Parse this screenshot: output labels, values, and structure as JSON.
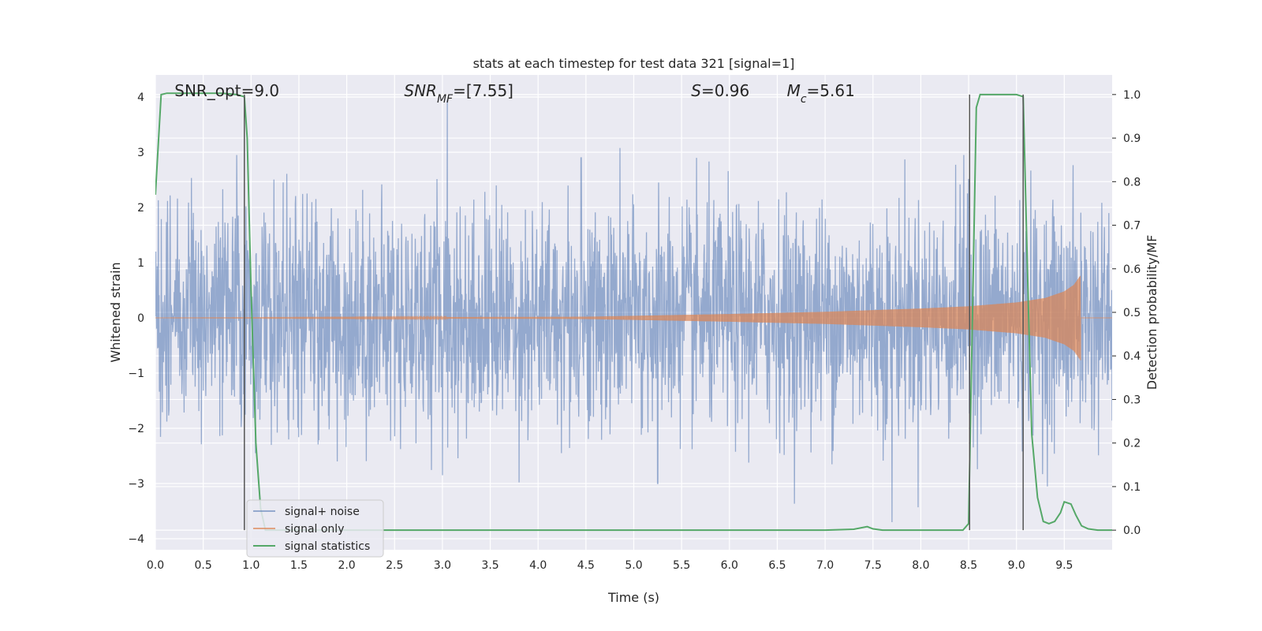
{
  "chart_data": {
    "type": "line",
    "title": "stats at each timestep for test data 321 [signal=1]",
    "xlabel": "Time (s)",
    "ylabel": "Whitened strain",
    "y2label": "Detection probability/MF",
    "xlim": [
      0.0,
      10.0
    ],
    "ylim": [
      -4.2,
      4.4
    ],
    "y2lim": [
      -0.045,
      1.045
    ],
    "xticks": [
      0.0,
      0.5,
      1.0,
      1.5,
      2.0,
      2.5,
      3.0,
      3.5,
      4.0,
      4.5,
      5.0,
      5.5,
      6.0,
      6.5,
      7.0,
      7.5,
      8.0,
      8.5,
      9.0,
      9.5
    ],
    "xtick_labels": [
      "0.0",
      "0.5",
      "1.0",
      "1.5",
      "2.0",
      "2.5",
      "3.0",
      "3.5",
      "4.0",
      "4.5",
      "5.0",
      "5.5",
      "6.0",
      "6.5",
      "7.0",
      "7.5",
      "8.0",
      "8.5",
      "9.0",
      "9.5"
    ],
    "yticks": [
      4,
      3,
      2,
      1,
      0,
      -1,
      -2,
      -3,
      -4
    ],
    "ytick_labels": [
      "4",
      "3",
      "2",
      "1",
      "0",
      "−1",
      "−2",
      "−3",
      "−4"
    ],
    "y2ticks": [
      1.0,
      0.9,
      0.8,
      0.7,
      0.6,
      0.5,
      0.4,
      0.3,
      0.2,
      0.1,
      0.0
    ],
    "y2tick_labels": [
      "1.0",
      "0.9",
      "0.8",
      "0.7",
      "0.6",
      "0.5",
      "0.4",
      "0.3",
      "0.2",
      "0.1",
      "0.0"
    ],
    "grid": true,
    "legend_position": "lower-left",
    "annotations": [
      {
        "x": 0.2,
        "y": 4.1,
        "parts": [
          {
            "text": "SNR_opt=9.0",
            "italic": false
          }
        ]
      },
      {
        "x": 2.6,
        "y": 4.1,
        "parts": [
          {
            "text": "SNR",
            "italic": true
          },
          {
            "text": "MF",
            "italic": true,
            "sub": true
          },
          {
            "text": "=[7.55]",
            "italic": false
          }
        ]
      },
      {
        "x": 5.6,
        "y": 4.1,
        "parts": [
          {
            "text": "S",
            "italic": true
          },
          {
            "text": "=0.96",
            "italic": false
          }
        ]
      },
      {
        "x": 6.6,
        "y": 4.1,
        "parts": [
          {
            "text": "M",
            "italic": true
          },
          {
            "text": "c",
            "italic": true,
            "sub": true
          },
          {
            "text": "=5.61",
            "italic": false
          }
        ]
      }
    ],
    "vertical_lines": [
      {
        "x": 0.93,
        "y2_min": 0.0,
        "y2_max": 1.0
      },
      {
        "x": 8.51,
        "y2_min": 0.0,
        "y2_max": 1.0
      },
      {
        "x": 9.07,
        "y2_min": 0.0,
        "y2_max": 1.0
      }
    ],
    "series": [
      {
        "name": "signal+ noise",
        "kind": "noise",
        "color": "#4c72b0",
        "axis": "left",
        "x_range": [
          0.0,
          10.0
        ],
        "typical_amplitude": 1.3,
        "peaks": [
          {
            "x": 3.05,
            "y": 3.95
          },
          {
            "x": 0.85,
            "y": 2.95
          },
          {
            "x": 8.45,
            "y": 2.95
          },
          {
            "x": 4.45,
            "y": 2.9
          },
          {
            "x": 7.7,
            "y": -3.7
          },
          {
            "x": 5.25,
            "y": -3.0
          },
          {
            "x": 3.0,
            "y": -2.85
          },
          {
            "x": 1.9,
            "y": -2.6
          }
        ]
      },
      {
        "name": "signal only",
        "kind": "chirp",
        "color": "#dd8452",
        "axis": "left",
        "x_range": [
          0.0,
          9.67
        ],
        "envelope": [
          {
            "x": 0.0,
            "y": 0.0
          },
          {
            "x": 4.5,
            "y": 0.02
          },
          {
            "x": 6.0,
            "y": 0.07
          },
          {
            "x": 7.0,
            "y": 0.11
          },
          {
            "x": 8.0,
            "y": 0.17
          },
          {
            "x": 8.5,
            "y": 0.21
          },
          {
            "x": 9.0,
            "y": 0.28
          },
          {
            "x": 9.3,
            "y": 0.36
          },
          {
            "x": 9.5,
            "y": 0.48
          },
          {
            "x": 9.6,
            "y": 0.6
          },
          {
            "x": 9.67,
            "y": 0.77
          }
        ]
      },
      {
        "name": "signal statistics",
        "kind": "line",
        "color": "#55a868",
        "axis": "right",
        "x": [
          0.0,
          0.06,
          0.12,
          0.2,
          0.3,
          0.5,
          0.7,
          0.85,
          0.93,
          0.96,
          1.0,
          1.05,
          1.1,
          1.15,
          1.2,
          2.0,
          3.0,
          4.0,
          4.5,
          5.0,
          6.0,
          7.0,
          7.3,
          7.44,
          7.5,
          7.6,
          8.0,
          8.44,
          8.5,
          8.58,
          8.62,
          8.7,
          8.8,
          9.0,
          9.07,
          9.12,
          9.16,
          9.22,
          9.28,
          9.34,
          9.4,
          9.46,
          9.5,
          9.57,
          9.62,
          9.68,
          9.75,
          9.85,
          10.0
        ],
        "y": [
          0.77,
          1.0,
          1.003,
          1.003,
          1.003,
          1.003,
          1.003,
          1.0,
          0.995,
          0.9,
          0.55,
          0.2,
          0.05,
          0.0,
          0.0,
          0.0,
          0.0,
          0.0,
          0.0,
          0.0,
          0.0,
          0.0,
          0.002,
          0.008,
          0.003,
          0.0,
          0.0,
          0.0,
          0.015,
          0.97,
          1.0,
          1.0,
          1.0,
          1.0,
          0.995,
          0.55,
          0.22,
          0.075,
          0.02,
          0.015,
          0.02,
          0.04,
          0.065,
          0.06,
          0.035,
          0.01,
          0.003,
          0.0,
          0.0
        ]
      }
    ]
  }
}
